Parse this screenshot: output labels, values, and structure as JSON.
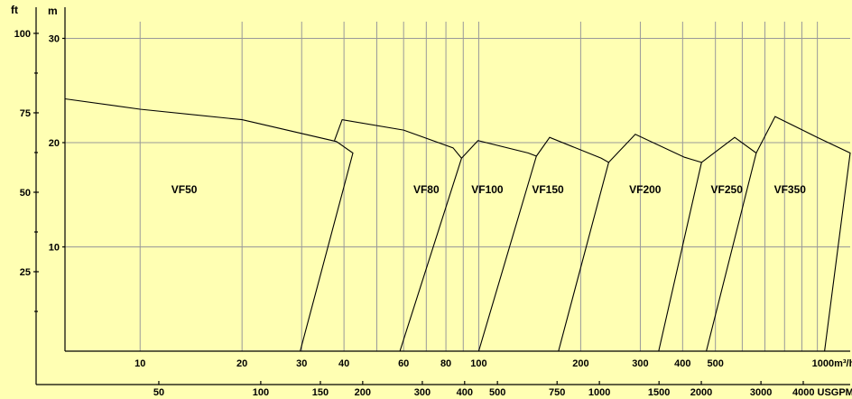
{
  "chart_data": {
    "type": "line",
    "y_unit_ft": "ft",
    "y_unit_m": "m",
    "ft_ticks": [
      {
        "value": 100,
        "label": "100"
      },
      {
        "value": 75,
        "label": "75"
      },
      {
        "value": 50,
        "label": "50"
      },
      {
        "value": 25,
        "label": "25"
      }
    ],
    "m_ticks": [
      {
        "value": 30,
        "label": "30"
      },
      {
        "value": 20,
        "label": "20"
      },
      {
        "value": 10,
        "label": "10"
      }
    ],
    "m3h_ticks": [
      {
        "value": 10,
        "label": "10"
      },
      {
        "value": 20,
        "label": "20"
      },
      {
        "value": 30,
        "label": "30"
      },
      {
        "value": 40,
        "label": "40"
      },
      {
        "value": 60,
        "label": "60"
      },
      {
        "value": 80,
        "label": "80"
      },
      {
        "value": 100,
        "label": "100"
      },
      {
        "value": 200,
        "label": "200"
      },
      {
        "value": 300,
        "label": "300"
      },
      {
        "value": 400,
        "label": "400"
      },
      {
        "value": 500,
        "label": "500"
      },
      {
        "value": 1000,
        "label": "1000m³/h"
      }
    ],
    "m3h_gridlines": [
      10,
      20,
      30,
      40,
      50,
      60,
      70,
      80,
      90,
      100,
      200,
      300,
      400,
      500,
      600,
      700,
      800,
      900,
      1000
    ],
    "usgpm_ticks": [
      {
        "value": 50,
        "label": "50"
      },
      {
        "value": 100,
        "label": "100"
      },
      {
        "value": 150,
        "label": "150"
      },
      {
        "value": 200,
        "label": "200"
      },
      {
        "value": 300,
        "label": "300"
      },
      {
        "value": 400,
        "label": "400"
      },
      {
        "value": 500,
        "label": "500"
      },
      {
        "value": 750,
        "label": "750"
      },
      {
        "value": 1000,
        "label": "1000"
      },
      {
        "value": 1500,
        "label": "1500"
      },
      {
        "value": 2000,
        "label": "2000"
      },
      {
        "value": 3000,
        "label": "3000"
      },
      {
        "value": 4000,
        "label": "4000 USGPM"
      }
    ],
    "series": [
      {
        "name": "VF50",
        "label_point": [
          13.5,
          15.5
        ],
        "points": [
          [
            6,
            24.2
          ],
          [
            10,
            23.2
          ],
          [
            20,
            22.2
          ],
          [
            38,
            20.1
          ],
          [
            42.5,
            19.0
          ],
          [
            29.7,
            0.0
          ]
        ]
      },
      {
        "name": "VF80",
        "label_point": [
          70,
          15.5
        ],
        "points": [
          [
            37.5,
            20.2
          ],
          [
            39.5,
            22.2
          ],
          [
            60,
            21.2
          ],
          [
            84,
            19.5
          ],
          [
            89,
            18.5
          ],
          [
            58.5,
            0.0
          ]
        ]
      },
      {
        "name": "VF100",
        "label_point": [
          106,
          15.5
        ],
        "points": [
          [
            89,
            18.5
          ],
          [
            99.5,
            20.2
          ],
          [
            140,
            19.0
          ],
          [
            148,
            18.7
          ],
          [
            100,
            0.0
          ]
        ]
      },
      {
        "name": "VF150",
        "label_point": [
          160,
          15.5
        ],
        "points": [
          [
            148,
            18.7
          ],
          [
            162,
            20.5
          ],
          [
            230,
            18.5
          ],
          [
            242,
            18.1
          ],
          [
            172,
            0.0
          ]
        ]
      },
      {
        "name": "VF200",
        "label_point": [
          310,
          15.5
        ],
        "points": [
          [
            242,
            18.1
          ],
          [
            290,
            20.8
          ],
          [
            405,
            18.6
          ],
          [
            455,
            18.1
          ],
          [
            340,
            0.0
          ]
        ]
      },
      {
        "name": "VF250",
        "label_point": [
          540,
          15.5
        ],
        "points": [
          [
            455,
            18.1
          ],
          [
            570,
            20.5
          ],
          [
            660,
            19.0
          ],
          [
            470,
            0.0
          ]
        ]
      },
      {
        "name": "VF350",
        "label_point": [
          830,
          15.5
        ],
        "points": [
          [
            660,
            19.0
          ],
          [
            750,
            22.5
          ],
          [
            1000,
            20.5
          ],
          [
            1250,
            19.0
          ],
          [
            1050,
            0.0
          ]
        ]
      }
    ]
  }
}
